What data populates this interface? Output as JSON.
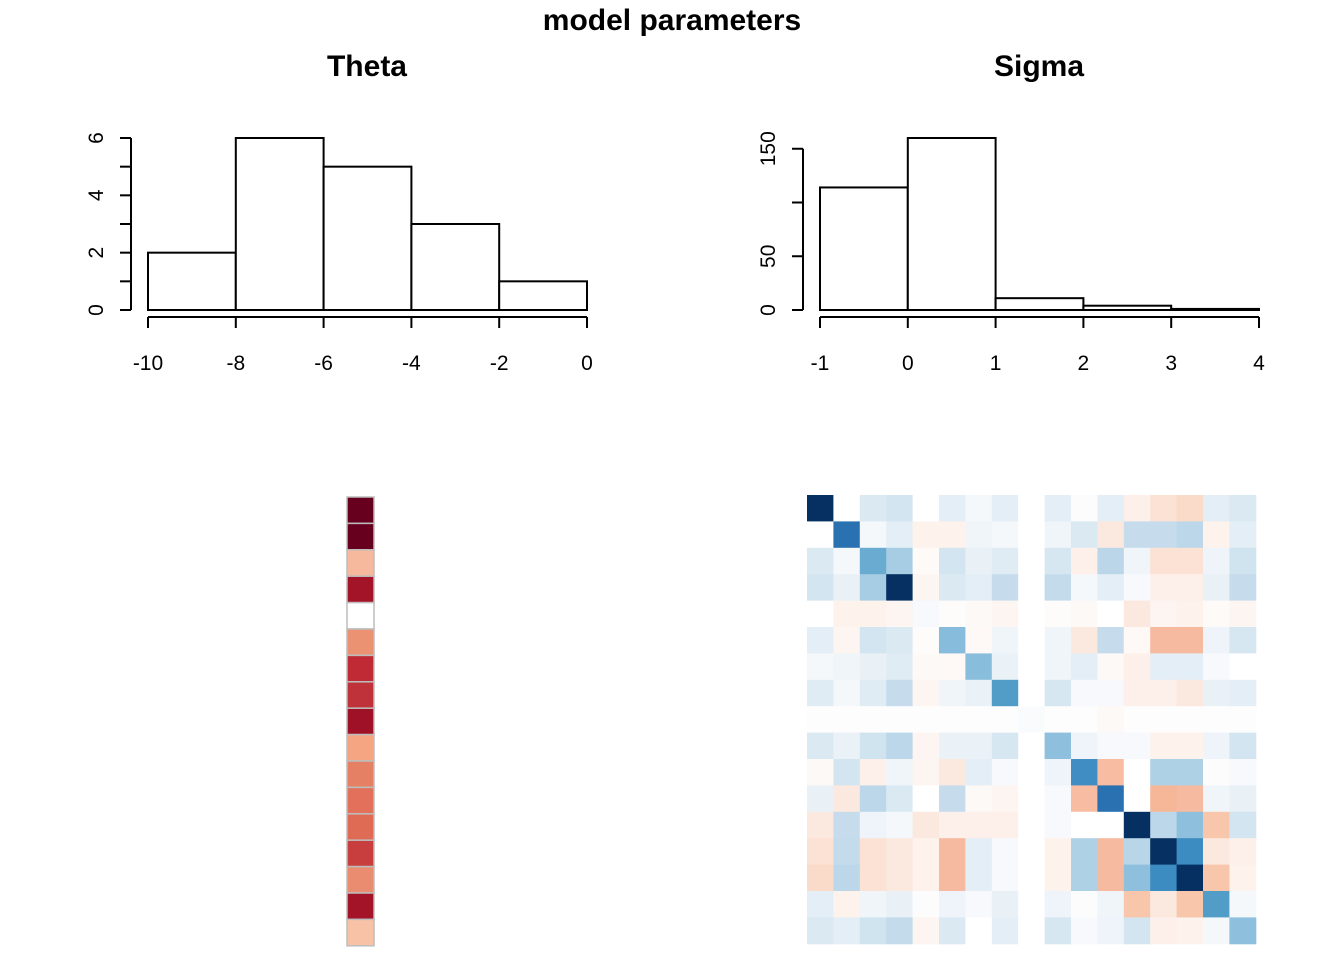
{
  "figure": {
    "title": "model parameters"
  },
  "palette": {
    "axis": "#000000",
    "bar_stroke": "#000000",
    "bar_fill": "#ffffff",
    "grid_border": "#bdbdbd"
  },
  "chart_data": [
    {
      "id": "theta-hist",
      "type": "bar",
      "title": "Theta",
      "xlabel": "",
      "ylabel": "",
      "bins": [
        [
          -10,
          -8
        ],
        [
          -8,
          -6
        ],
        [
          -6,
          -4
        ],
        [
          -4,
          -2
        ],
        [
          -2,
          0
        ]
      ],
      "values": [
        2,
        6,
        5,
        3,
        1
      ],
      "xlim": [
        -10,
        0
      ],
      "ylim": [
        0,
        6
      ],
      "xticks": [
        -10,
        -8,
        -6,
        -4,
        -2,
        0
      ],
      "yticks_labeled": [
        0,
        2,
        4,
        6
      ],
      "yticks_minor": [
        1,
        3,
        5
      ],
      "grid": false
    },
    {
      "id": "sigma-hist",
      "type": "bar",
      "title": "Sigma",
      "xlabel": "",
      "ylabel": "",
      "bins": [
        [
          -1,
          0
        ],
        [
          0,
          1
        ],
        [
          1,
          2
        ],
        [
          2,
          3
        ],
        [
          3,
          4
        ]
      ],
      "values": [
        114,
        160,
        11,
        4,
        1
      ],
      "xlim": [
        -1,
        4
      ],
      "ylim": [
        0,
        160
      ],
      "xticks": [
        -1,
        0,
        1,
        2,
        3,
        4
      ],
      "yticks_labeled": [
        0,
        50,
        150
      ],
      "yticks_minor": [
        100
      ],
      "grid": false
    },
    {
      "id": "theta-strip",
      "type": "heatmap",
      "title": "",
      "rows": 17,
      "cols": 1,
      "colors": [
        "#67001f",
        "#67001f",
        "#f6b99d",
        "#a41428",
        "#ffffff",
        "#eb9272",
        "#bf2a34",
        "#c0323a",
        "#9f1127",
        "#f5a582",
        "#e58064",
        "#e2705a",
        "#e06b55",
        "#c83d3d",
        "#ea8c6f",
        "#a41428",
        "#f7c2a5"
      ]
    },
    {
      "id": "sigma-matrix",
      "type": "heatmap",
      "title": "",
      "rows": 17,
      "cols": 17,
      "colors": [
        [
          "#053061",
          "#ffffff",
          "#dbe9f3",
          "#d3e5f0",
          "#ffffff",
          "#e4eef6",
          "#f4f8fb",
          "#e4eef6",
          "#ffffff",
          "#e4eef6",
          "#fcfcfd",
          "#e4eef6",
          "#fdf0ea",
          "#fbe2d4",
          "#fadac8",
          "#e4eef6",
          "#dbe9f3"
        ],
        [
          "#ffffff",
          "#2a71b2",
          "#f4f8fb",
          "#e4eef6",
          "#fdf2ec",
          "#fdf2ec",
          "#f0f5fa",
          "#f4f8fb",
          "#ffffff",
          "#f0f5fa",
          "#dbe9f3",
          "#fbe9df",
          "#c6dcec",
          "#c6dcec",
          "#bcd7e9",
          "#fdf2ec",
          "#e4eef6"
        ],
        [
          "#dbe9f3",
          "#f4f8fb",
          "#6aabd1",
          "#a6cde3",
          "#fefaf8",
          "#d3e5f0",
          "#e9f1f7",
          "#e0ecf4",
          "#ffffff",
          "#d7e7f1",
          "#fdf0ea",
          "#bad6e8",
          "#f0f5fa",
          "#fbe2d4",
          "#fbe2d4",
          "#eef4f9",
          "#d0e4ef"
        ],
        [
          "#d3e5f0",
          "#e9f1f7",
          "#a6cde3",
          "#053061",
          "#fdf5f1",
          "#dbe9f3",
          "#e4eef6",
          "#c6dcec",
          "#ffffff",
          "#c3dbeb",
          "#f4f8fb",
          "#e4eef6",
          "#f7f9fc",
          "#fdf0ea",
          "#fdf0ea",
          "#e9f1f7",
          "#c6dcec"
        ],
        [
          "#ffffff",
          "#fdf2ec",
          "#fdf2ec",
          "#fdf5f1",
          "#f7f9fc",
          "#fefcfb",
          "#fdf9f7",
          "#fdf5f1",
          "#ffffff",
          "#fefcfb",
          "#fdf9f7",
          "#ffffff",
          "#fbe9df",
          "#fdf5f1",
          "#fdf2ec",
          "#fefaf8",
          "#fdf5f1"
        ],
        [
          "#e4eef6",
          "#fdf5f1",
          "#d3e5f0",
          "#dbe9f3",
          "#fefcfb",
          "#87bcdc",
          "#fef9f6",
          "#f0f5fa",
          "#ffffff",
          "#f0f5fa",
          "#fbe9df",
          "#c6dcec",
          "#fef9f6",
          "#f6baa0",
          "#f6baa0",
          "#eef4f9",
          "#d7e7f1"
        ],
        [
          "#f4f8fb",
          "#f0f5fa",
          "#e9f1f7",
          "#e0ecf4",
          "#fdf9f7",
          "#fef9f6",
          "#88bddc",
          "#eaf2f8",
          "#ffffff",
          "#f0f5fa",
          "#e4eef6",
          "#fdf9f7",
          "#fdf0ea",
          "#e4eef6",
          "#e4eef6",
          "#f7f9fc",
          "#ffffff"
        ],
        [
          "#e0ecf4",
          "#f4f8fb",
          "#e0ecf4",
          "#c6dcec",
          "#fdf5f1",
          "#f0f5fa",
          "#eaf2f8",
          "#529dc8",
          "#ffffff",
          "#d7e7f1",
          "#f7f9fc",
          "#f7f9fc",
          "#fdf0ea",
          "#fdf0ea",
          "#fbe9df",
          "#e9f1f7",
          "#e4eef6"
        ],
        [
          "#fdfdfd",
          "#fdfdfd",
          "#fdfdfd",
          "#fdfdfd",
          "#fdfdfd",
          "#fdfdfd",
          "#fdfdfd",
          "#fdfdfd",
          "#fafbfc",
          "#fdfdfd",
          "#fdfdfd",
          "#fdf9f7",
          "#fdfdfd",
          "#fdfdfd",
          "#fdfdfd",
          "#fdfdfd",
          "#fdfdfd"
        ],
        [
          "#dbe9f3",
          "#eaf2f8",
          "#d0e4ef",
          "#bcd7e9",
          "#fdf5f1",
          "#eaf2f8",
          "#eaf2f8",
          "#d7e7f1",
          "#ffffff",
          "#8ec0dd",
          "#eef4f9",
          "#f7f9fc",
          "#f7f9fc",
          "#fdf2ec",
          "#fdf2ec",
          "#eef4f9",
          "#d3e5f0"
        ],
        [
          "#fdf9f7",
          "#d3e5f0",
          "#fdf0ea",
          "#f0f5fa",
          "#fdf5f1",
          "#fbe9df",
          "#e4eef6",
          "#f7f9fc",
          "#ffffff",
          "#eef4f9",
          "#3f8dc2",
          "#f8bca3",
          "#ffffff",
          "#aed1e6",
          "#aed1e6",
          "#fcfcfd",
          "#f7f9fc"
        ],
        [
          "#e9f1f7",
          "#fbe9df",
          "#bcd7e9",
          "#dbe9f3",
          "#ffffff",
          "#c6dcec",
          "#fdf9f7",
          "#fdf5f1",
          "#ffffff",
          "#f7f9fc",
          "#f8bca3",
          "#2a71b2",
          "#ffffff",
          "#f6b799",
          "#f6baa0",
          "#f0f5fa",
          "#e9f1f7"
        ],
        [
          "#fbe9df",
          "#c6dcec",
          "#eef4f9",
          "#f4f8fb",
          "#fbe9df",
          "#fdf0ea",
          "#fdf0ea",
          "#fdf0ea",
          "#ffffff",
          "#f7f9fc",
          "#ffffff",
          "#ffffff",
          "#053061",
          "#bcd7e9",
          "#8ec0dd",
          "#f8c6ab",
          "#d3e5f0"
        ],
        [
          "#fbe2d4",
          "#c3dbeb",
          "#fbe2d4",
          "#fbe9df",
          "#fdf2ec",
          "#f6baa0",
          "#e4eef6",
          "#f7f9fc",
          "#ffffff",
          "#fdf2ec",
          "#aed1e6",
          "#f6baa0",
          "#b8d6e8",
          "#053061",
          "#3d8cc1",
          "#fbe9df",
          "#fdf0ea"
        ],
        [
          "#fadac8",
          "#bcd7e9",
          "#fbe2d4",
          "#fbe9df",
          "#fdf2ec",
          "#f6baa0",
          "#e4eef6",
          "#f7f9fc",
          "#ffffff",
          "#fdf2ec",
          "#aed1e6",
          "#f6baa0",
          "#8ec0dd",
          "#3d8cc1",
          "#053061",
          "#f8c6ab",
          "#fdf2ec"
        ],
        [
          "#e4eef6",
          "#fdf2ec",
          "#f0f5fa",
          "#e9f1f7",
          "#fcfcfd",
          "#eef4f9",
          "#f7f9fc",
          "#e9f1f7",
          "#ffffff",
          "#eef4f9",
          "#fcfcfd",
          "#f0f5fa",
          "#f8c6ab",
          "#fbe9df",
          "#f8c6ab",
          "#529dc8",
          "#f4f8fb"
        ],
        [
          "#dbe9f3",
          "#e4eef6",
          "#d0e4ef",
          "#c3dbeb",
          "#fdf5f1",
          "#dbe9f3",
          "#ffffff",
          "#e4eef6",
          "#ffffff",
          "#d7e7f1",
          "#f7f9fc",
          "#eef4f9",
          "#d3e5f0",
          "#fdf0ea",
          "#fdf2ec",
          "#f4f8fb",
          "#8ec0dd"
        ]
      ]
    }
  ]
}
